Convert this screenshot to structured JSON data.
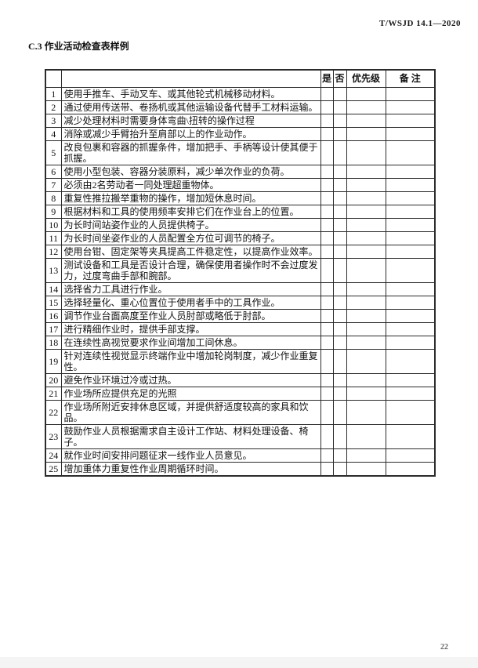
{
  "header": {
    "doc_code": "T/WSJD 14.1—2020"
  },
  "section": {
    "title": "C.3 作业活动检查表样例"
  },
  "checklist_table": {
    "columns": {
      "num": "",
      "description": "",
      "yes": "是",
      "no": "否",
      "priority": "优先级",
      "remarks": "备 注"
    },
    "rows": [
      {
        "num": "1",
        "text": "使用手推车、手动叉车、或其他轮式机械移动材料。"
      },
      {
        "num": "2",
        "text": "通过使用传送带、卷扬机或其他运输设备代替手工材料运输。"
      },
      {
        "num": "3",
        "text": "减少处理材料时需要身体弯曲\\扭转的操作过程"
      },
      {
        "num": "4",
        "text": "消除或减少手臂抬升至肩部以上的作业动作。"
      },
      {
        "num": "5",
        "text": "改良包裹和容器的抓握条件，增加把手、手柄等设计使其便于抓握。"
      },
      {
        "num": "6",
        "text": "使用小型包装、容器分装原料，减少单次作业的负荷。"
      },
      {
        "num": "7",
        "text": "必须由2名劳动者一同处理超重物体。"
      },
      {
        "num": "8",
        "text": "重复性推拉搬举重物的操作，增加短休息时间。"
      },
      {
        "num": "9",
        "text": "根据材料和工具的使用频率安排它们在作业台上的位置。"
      },
      {
        "num": "10",
        "text": "为长时间站姿作业的人员提供椅子。"
      },
      {
        "num": "11",
        "text": "为长时间坐姿作业的人员配置全方位可调节的椅子。"
      },
      {
        "num": "12",
        "text": "使用台钳、固定架等夹具提高工件稳定性，以提高作业效率。"
      },
      {
        "num": "13",
        "text": "测试设备和工具是否设计合理，确保使用者操作时不会过度发力，过度弯曲手部和腕部。"
      },
      {
        "num": "14",
        "text": "选择省力工具进行作业。"
      },
      {
        "num": "15",
        "text": "选择轻量化、重心位置位于使用者手中的工具作业。"
      },
      {
        "num": "16",
        "text": "调节作业台面高度至作业人员肘部或略低于肘部。"
      },
      {
        "num": "17",
        "text": "进行精细作业时，提供手部支撑。"
      },
      {
        "num": "18",
        "text": "在连续性高视觉要求作业间增加工间休息。"
      },
      {
        "num": "19",
        "text": "针对连续性视觉显示终端作业中增加轮岗制度，减少作业重复性。"
      },
      {
        "num": "20",
        "text": "避免作业环境过冷或过热。"
      },
      {
        "num": "21",
        "text": "作业场所应提供充足的光照"
      },
      {
        "num": "22",
        "text": "作业场所附近安排休息区域，并提供舒适度较高的家具和饮品。"
      },
      {
        "num": "23",
        "text": "鼓励作业人员根据需求自主设计工作站、材料处理设备、椅子。"
      },
      {
        "num": "24",
        "text": "就作业时间安排问题征求一线作业人员意见。"
      },
      {
        "num": "25",
        "text": "增加重体力重复性作业周期循环时间。"
      }
    ]
  },
  "footer": {
    "page_number": "22"
  }
}
